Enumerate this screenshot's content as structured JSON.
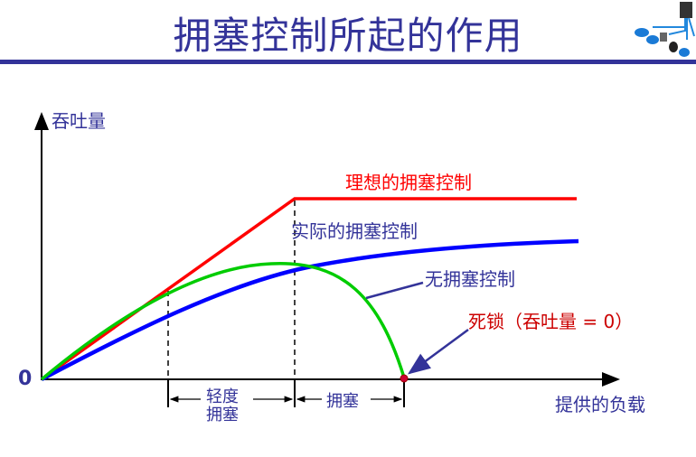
{
  "title": "拥塞控制所起的作用",
  "y_axis_label": "吞吐量",
  "x_axis_label": "提供的负载",
  "origin_label": "0",
  "curves": {
    "ideal": {
      "label": "理想的拥塞控制",
      "color": "#ff0000"
    },
    "actual": {
      "label": "实际的拥塞控制",
      "color": "#0000ff"
    },
    "none": {
      "label": "无拥塞控制",
      "color": "#00cc00"
    }
  },
  "deadlock_label": "死锁（吞吐量 = 0）",
  "regions": {
    "light_line1": "轻度",
    "light_line2": "拥塞",
    "congestion": "拥塞"
  },
  "colors": {
    "title": "#333399",
    "deadlock": "#cc0000"
  }
}
